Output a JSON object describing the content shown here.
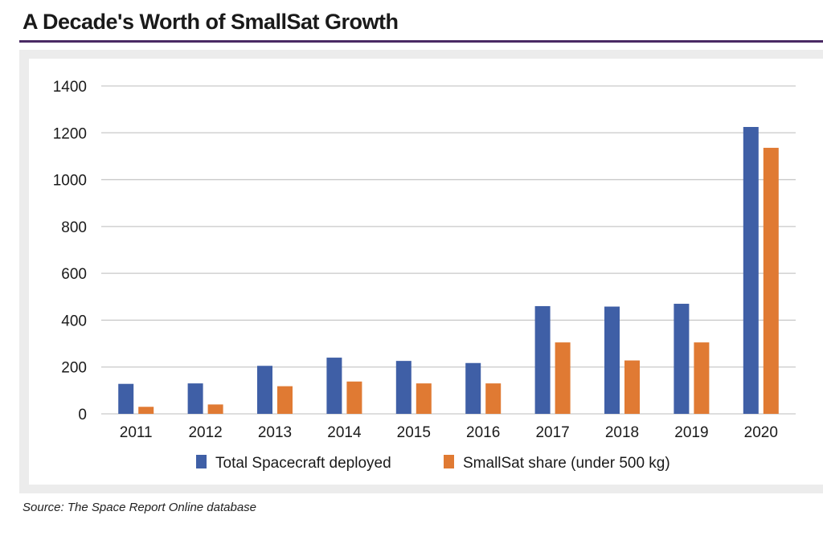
{
  "header": {
    "title": "A Decade's Worth of SmallSat Growth"
  },
  "footer": {
    "source": "Source: The Space Report Online database"
  },
  "chart_data": {
    "type": "bar",
    "title": "",
    "xlabel": "",
    "ylabel": "",
    "categories": [
      "2011",
      "2012",
      "2013",
      "2014",
      "2015",
      "2016",
      "2017",
      "2018",
      "2019",
      "2020"
    ],
    "series": [
      {
        "name": "Total Spacecraft deployed",
        "color": "#3f5fa6",
        "values": [
          128,
          130,
          205,
          240,
          226,
          217,
          460,
          458,
          470,
          1225
        ]
      },
      {
        "name": "SmallSat share (under 500 kg)",
        "color": "#e07a33",
        "values": [
          30,
          40,
          118,
          138,
          130,
          130,
          305,
          228,
          305,
          1136
        ]
      }
    ],
    "ylim": [
      0,
      1400
    ],
    "yticks": [
      0,
      200,
      400,
      600,
      800,
      1000,
      1200,
      1400
    ],
    "grid": true,
    "legend_position": "bottom-center"
  }
}
